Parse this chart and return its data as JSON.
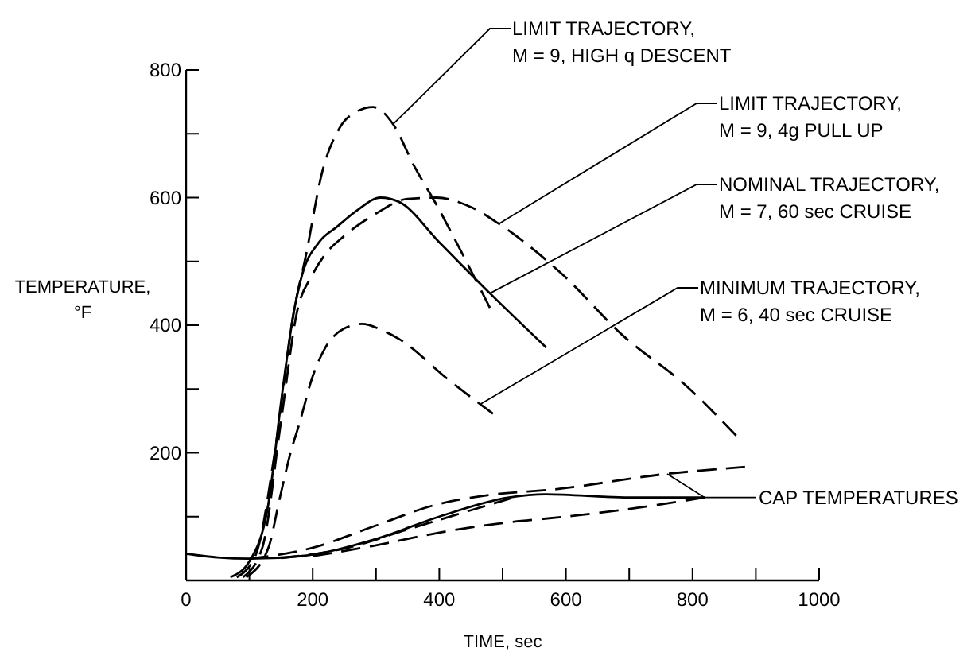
{
  "chart_data": {
    "type": "line",
    "xlabel": "TIME, sec",
    "ylabel": "TEMPERATURE, °F",
    "xlim": [
      0,
      1000
    ],
    "ylim": [
      0,
      800
    ],
    "xticks": [
      0,
      {
        "value": 100,
        "label": null
      },
      200,
      {
        "value": 300,
        "label": null
      },
      400,
      {
        "value": 500,
        "label": null
      },
      600,
      {
        "value": 700,
        "label": null
      },
      800,
      {
        "value": 900,
        "label": null
      },
      1000
    ],
    "yticks": [
      {
        "value": 100,
        "label": null
      },
      200,
      {
        "value": 300,
        "label": null
      },
      400,
      {
        "value": 500,
        "label": null
      },
      600,
      {
        "value": 700,
        "label": null
      },
      800
    ],
    "grid": false,
    "series": [
      {
        "name": "LIMIT TRAJECTORY, M = 9, HIGH q DESCENT",
        "color": "#000000",
        "line_style": "dashed",
        "x": [
          80,
          110,
          140,
          170,
          189,
          215,
          243,
          270,
          295,
          327,
          360,
          396,
          440,
          480
        ],
        "values": [
          5,
          40,
          200,
          420,
          508,
          640,
          710,
          735,
          742,
          715,
          650,
          588,
          505,
          427
        ]
      },
      {
        "name": "LIMIT TRAJECTORY, M = 9, 4g PULL UP",
        "color": "#000000",
        "line_style": "dashed",
        "x": [
          90,
          120,
          150,
          175,
          200,
          219,
          250,
          300,
          350,
          396,
          450,
          494,
          593,
          691,
          790,
          869
        ],
        "values": [
          5,
          50,
          250,
          420,
          480,
          510,
          540,
          575,
          598,
          600,
          585,
          559,
          481,
          383,
          305,
          227
        ]
      },
      {
        "name": "NOMINAL TRAJECTORY, M = 7, 60 sec CRUISE",
        "color": "#000000",
        "line_style": "solid",
        "x": [
          70,
          100,
          130,
          151,
          170,
          183,
          210,
          238,
          270,
          307,
          337,
          400,
          480,
          569
        ],
        "values": [
          5,
          30,
          120,
          287,
          420,
          478,
          530,
          554,
          580,
          600,
          593,
          530,
          450,
          365
        ]
      },
      {
        "name": "MINIMUM TRAJECTORY, M = 6, 40 sec CRUISE",
        "color": "#000000",
        "line_style": "dashed",
        "x": [
          95,
          130,
          148,
          165,
          179,
          200,
          219,
          250,
          278,
          310,
          337,
          414,
          485
        ],
        "values": [
          5,
          51,
          129,
          200,
          246,
          320,
          363,
          395,
          402,
          392,
          378,
          315,
          261
        ]
      },
      {
        "color": "#000000",
        "line_style": "dashed",
        "x": [
          100,
          199,
          297,
          396,
          465,
          593,
          750,
          883
        ],
        "values": [
          34,
          51,
          85,
          119,
          132,
          144,
          166,
          178
        ]
      },
      {
        "color": "#000000",
        "line_style": "solid",
        "x": [
          0,
          50,
          100,
          180,
          300,
          400,
          510,
          568,
          700,
          819
        ],
        "values": [
          42,
          36,
          34,
          38,
          65,
          100,
          130,
          135,
          130,
          130
        ]
      },
      {
        "color": "#000000",
        "line_style": "dashed",
        "x": [
          150,
          250,
          350,
          450,
          514
        ],
        "values": [
          35,
          50,
          80,
          110,
          129
        ]
      },
      {
        "color": "#000000",
        "line_style": "dashed",
        "x": [
          200,
          300,
          400,
          500,
          600,
          700,
          819
        ],
        "values": [
          38,
          55,
          75,
          90,
          100,
          112,
          130
        ]
      }
    ],
    "annotations": [
      {
        "text": "CAP TEMPERATURES",
        "x": 819,
        "y": 130
      }
    ]
  }
}
